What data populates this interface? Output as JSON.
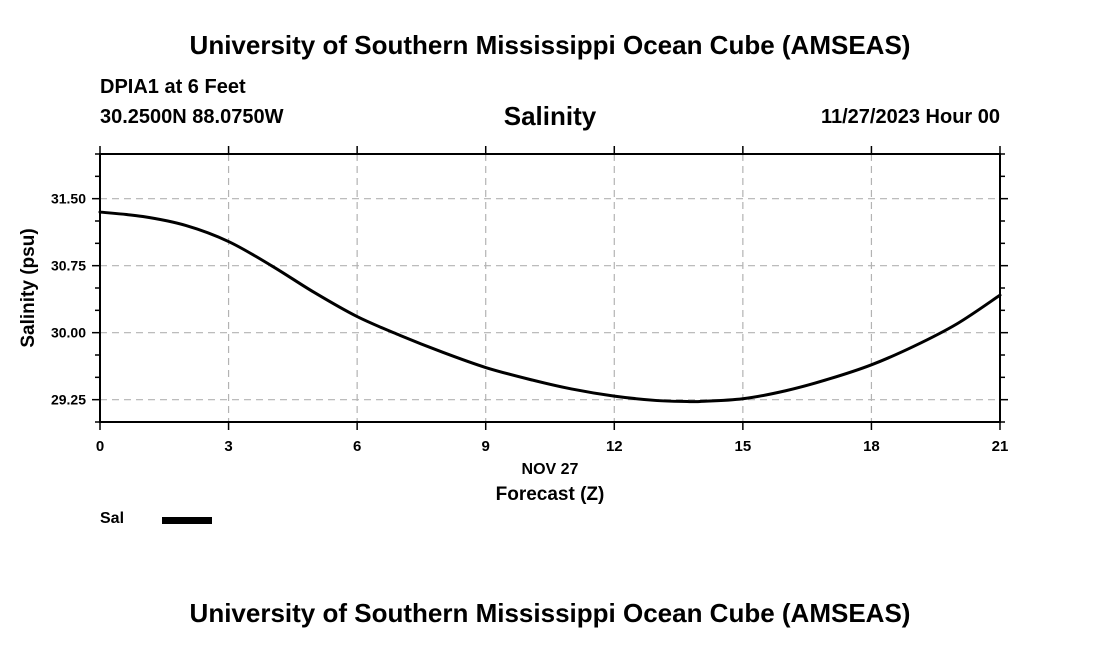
{
  "header": {
    "org_title": "University of Southern Mississippi Ocean Cube (AMSEAS)",
    "station": "DPIA1 at 6 Feet",
    "coordinates": "30.2500N  88.0750W",
    "datetime": "11/27/2023 Hour 00"
  },
  "footer": {
    "org_title": "University of Southern Mississippi Ocean Cube (AMSEAS)"
  },
  "legend": {
    "label": "Sal",
    "color": "#000000"
  },
  "chart_data": {
    "type": "line",
    "title": "Salinity",
    "xlabel": "Forecast (Z)",
    "xlabel_date": "NOV 27",
    "ylabel": "Salinity (psu)",
    "xlim": [
      0,
      21
    ],
    "ylim": [
      29.0,
      32.0
    ],
    "x_ticks": [
      0,
      3,
      6,
      9,
      12,
      15,
      18,
      21
    ],
    "y_ticks": [
      29.25,
      30.0,
      30.75,
      31.5
    ],
    "y_tick_labels": [
      "29.25",
      "30.00",
      "30.75",
      "31.50"
    ],
    "y_minor_step": 0.25,
    "grid": true,
    "series": [
      {
        "name": "Sal",
        "color": "#000000",
        "x": [
          0,
          1,
          2,
          3,
          4,
          5,
          6,
          7,
          8,
          9,
          10,
          11,
          12,
          13,
          13.7,
          14,
          15,
          16,
          17,
          18,
          19,
          20,
          21
        ],
        "values": [
          31.35,
          31.3,
          31.2,
          31.02,
          30.75,
          30.45,
          30.18,
          29.97,
          29.78,
          29.61,
          29.48,
          29.37,
          29.29,
          29.24,
          29.23,
          29.23,
          29.26,
          29.35,
          29.48,
          29.64,
          29.85,
          30.1,
          30.42
        ]
      }
    ]
  }
}
